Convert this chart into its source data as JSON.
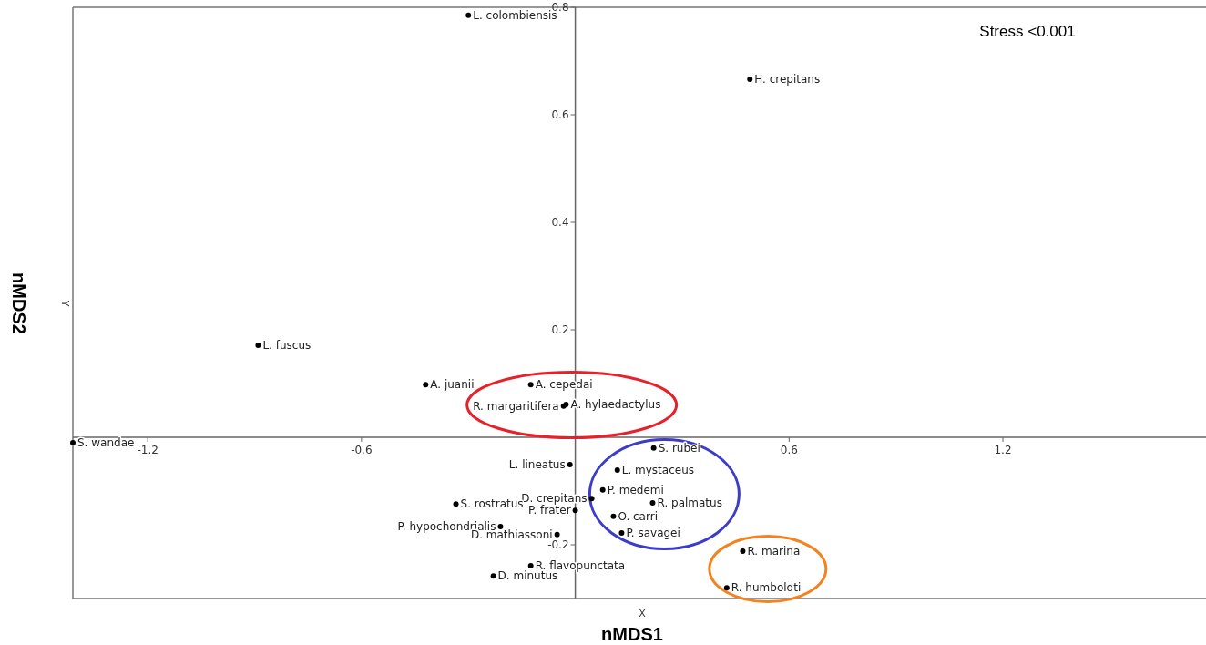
{
  "chart_data": {
    "type": "scatter",
    "xlabel": "nMDS1",
    "ylabel": "nMDS2",
    "annotations": [
      "Stress <0.001",
      "X",
      "Y"
    ],
    "xlim": [
      -1.41,
      1.77
    ],
    "ylim": [
      -0.3,
      0.8
    ],
    "xticks": [
      -1.2,
      -0.6,
      0.6,
      1.2
    ],
    "yticks": [
      -0.2,
      0.2,
      0.4,
      0.6,
      0.8
    ],
    "grid": false,
    "marker": "circle",
    "series": [
      {
        "color": "#000000",
        "x": [
          -0.3,
          0.49,
          -0.89,
          -0.42,
          -0.125,
          -0.033,
          -0.026,
          -1.41,
          0.22,
          -0.015,
          0.118,
          0.046,
          0.077,
          -0.335,
          0.217,
          0.0,
          0.107,
          -0.21,
          -0.051,
          0.13,
          0.47,
          -0.125,
          -0.23,
          0.425
        ],
        "values": [
          0.785,
          0.666,
          0.171,
          0.098,
          0.098,
          0.058,
          0.061,
          -0.01,
          -0.02,
          -0.051,
          -0.061,
          -0.114,
          -0.098,
          -0.124,
          -0.122,
          -0.136,
          -0.147,
          -0.166,
          -0.181,
          -0.178,
          -0.212,
          -0.239,
          -0.258,
          -0.28
        ],
        "value_labels": [
          "L. colombiensis",
          "H. crepitans",
          "L. fuscus",
          "A. juanii",
          "A. cepedai",
          "R. margaritifera",
          "A. hylaedactylus",
          "S. wandae",
          "S. rubei",
          "L. lineatus",
          "L. mystaceus",
          "D. crepitans",
          "P. medemi",
          "S. rostratus",
          "R. palmatus",
          "P. frater",
          "O. carri",
          "P. hypochondrialis",
          "D. mathiassoni",
          "P. savagei",
          "R. marina",
          "R. flavopunctata",
          "D. minutus",
          "R. humboldti"
        ]
      }
    ]
  }
}
